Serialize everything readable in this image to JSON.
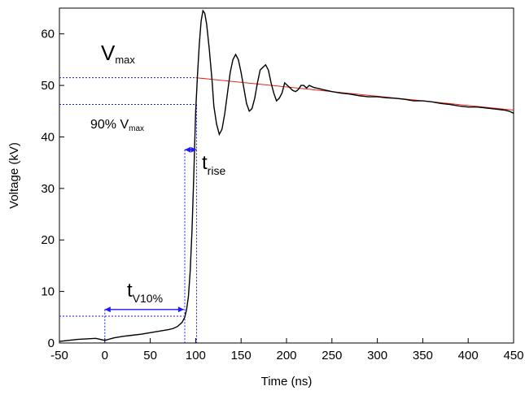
{
  "chart_data": {
    "type": "line",
    "xlabel": "Time (ns)",
    "ylabel": "Voltage (kV)",
    "xlim": [
      -50,
      450
    ],
    "ylim": [
      0,
      65
    ],
    "xticks": [
      -50,
      0,
      50,
      100,
      150,
      200,
      250,
      300,
      350,
      400,
      450
    ],
    "yticks": [
      0,
      10,
      20,
      30,
      40,
      50,
      60
    ],
    "grid": false,
    "colors": {
      "trace": "#000000",
      "fit": "#e8231a",
      "markers": "#1a1aff"
    },
    "series": [
      {
        "x": [
          -50,
          -40,
          -30,
          -20,
          -10,
          0,
          10,
          20,
          30,
          40,
          50,
          60,
          70,
          75,
          80,
          85,
          88,
          90,
          92,
          94,
          96,
          98,
          100,
          102,
          104,
          106,
          108,
          110,
          112,
          115,
          118,
          120,
          123,
          126,
          129,
          132,
          135,
          138,
          141,
          144,
          147,
          150,
          153,
          156,
          159,
          162,
          165,
          168,
          171,
          174,
          177,
          180,
          183,
          186,
          189,
          192,
          195,
          198,
          201,
          204,
          207,
          210,
          213,
          216,
          219,
          222,
          225,
          230,
          240,
          250,
          260,
          270,
          280,
          290,
          300,
          310,
          320,
          330,
          340,
          350,
          360,
          370,
          380,
          390,
          400,
          410,
          420,
          430,
          440,
          445,
          450
        ],
        "y": [
          0.3,
          0.5,
          0.7,
          0.8,
          0.9,
          0.5,
          1.0,
          1.3,
          1.5,
          1.7,
          2.0,
          2.3,
          2.6,
          2.8,
          3.2,
          4.0,
          5.0,
          6.5,
          9.0,
          14.0,
          22.0,
          33.0,
          45.0,
          52.0,
          58.0,
          62.5,
          64.5,
          64.0,
          62.0,
          57.0,
          51.0,
          46.0,
          42.5,
          40.5,
          41.5,
          44.5,
          48.5,
          52.5,
          55.0,
          56.0,
          55.0,
          52.5,
          49.5,
          46.5,
          45.0,
          45.5,
          47.5,
          50.5,
          53.0,
          53.5,
          54.0,
          53.0,
          50.5,
          48.5,
          47.0,
          47.5,
          48.5,
          50.5,
          50.0,
          49.5,
          49.0,
          48.8,
          49.2,
          50.0,
          50.0,
          49.5,
          50.0,
          49.6,
          49.2,
          48.8,
          48.5,
          48.3,
          48.0,
          47.8,
          47.8,
          47.6,
          47.5,
          47.3,
          47.0,
          47.0,
          46.8,
          46.5,
          46.3,
          46.0,
          45.8,
          45.8,
          45.6,
          45.4,
          45.2,
          45.0,
          44.6
        ]
      }
    ],
    "fit_line": {
      "x": [
        100,
        450
      ],
      "y": [
        51.5,
        45.2
      ]
    },
    "annotations": {
      "vmax": {
        "base": "V",
        "sub": "max",
        "value": 51.5
      },
      "v90": {
        "base": "90% V",
        "sub": "max",
        "value": 46.3
      },
      "trise": {
        "base": "t",
        "sub": "rise",
        "x_from": 88,
        "x_to": 101,
        "y": 37.5
      },
      "tv10": {
        "base": "t",
        "sub": "V10%",
        "x_from": 0,
        "x_to": 87,
        "y": 6.5,
        "level": 5.2
      }
    }
  }
}
